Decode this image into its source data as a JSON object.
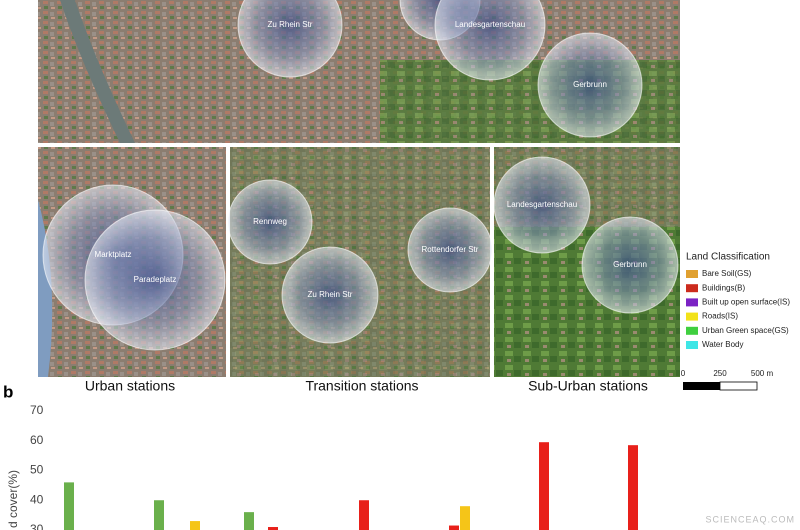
{
  "map": {
    "stations": [
      {
        "label": "Zu Rhein Str"
      },
      {
        "label": "Landesgartenschau"
      },
      {
        "label": "Gerbrunn"
      },
      {
        "label": "Marktplatz"
      },
      {
        "label": "Paradeplatz"
      },
      {
        "label": "Rennweg"
      },
      {
        "label": "Zu Rhein Str"
      },
      {
        "label": "Rottendorfer Str"
      },
      {
        "label": "Landesgartenschau"
      },
      {
        "label": "Gerbrunn"
      }
    ],
    "panels": [
      "Urban stations",
      "Transition stations",
      "Sub-Urban stations"
    ]
  },
  "legend": {
    "title": "Land Classification",
    "items": [
      {
        "label": "Bare Soil(GS)",
        "color": "#e0a030"
      },
      {
        "label": "Buildings(B)",
        "color": "#cc2b1d"
      },
      {
        "label": "Built up open surface(IS)",
        "color": "#7b22c4"
      },
      {
        "label": "Roads(IS)",
        "color": "#f2e21a"
      },
      {
        "label": "Urban Green space(GS)",
        "color": "#3fcf3f"
      },
      {
        "label": "Water Body",
        "color": "#3ee6e6"
      }
    ]
  },
  "scale": {
    "labels": [
      "0",
      "250",
      "500 m"
    ]
  },
  "panel_label": "b",
  "watermark": "SCIENCEAQ.COM",
  "chart_data": {
    "type": "bar",
    "y_label": "d cover(%)",
    "values": [
      46,
      40,
      33,
      36,
      31,
      40,
      31.5,
      38,
      59.5,
      58.5
    ],
    "colors": [
      "#6ab04c",
      "#6ab04c",
      "#f5c518",
      "#6ab04c",
      "#e8201a",
      "#e8201a",
      "#e8201a",
      "#f5c518",
      "#e8201a",
      "#e8201a"
    ],
    "ylim": [
      30,
      72
    ],
    "yticks": [
      30,
      40,
      50,
      60,
      70
    ]
  }
}
